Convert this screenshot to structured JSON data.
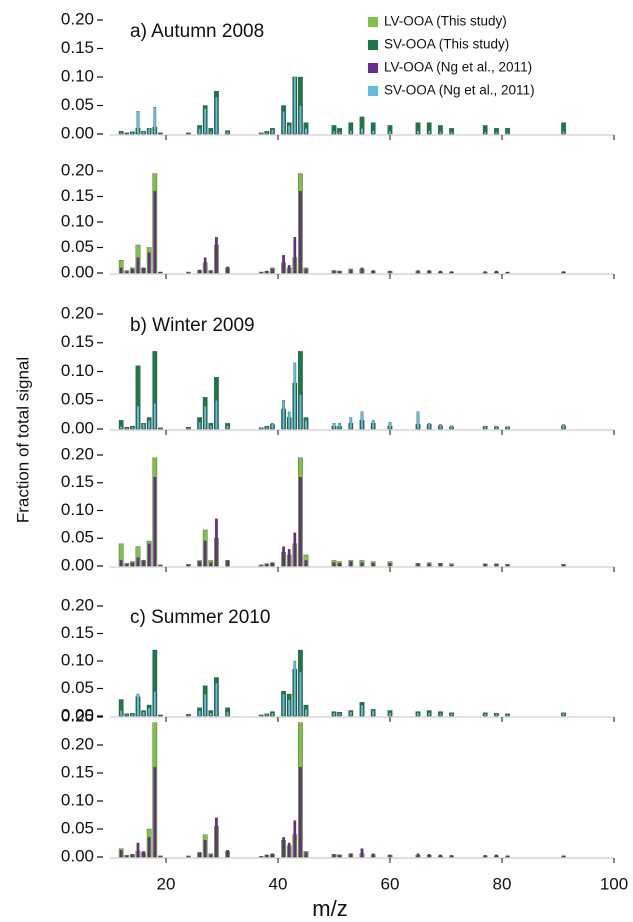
{
  "ylabel": "Fraction of total signal",
  "chart_data": [
    {
      "type": "bar",
      "title": "a) Autumn 2008",
      "x": [
        12,
        13,
        14,
        15,
        16,
        17,
        18,
        19,
        24,
        26,
        27,
        28,
        29,
        31,
        37,
        38,
        39,
        41,
        42,
        43,
        44,
        45,
        50,
        51,
        53,
        55,
        57,
        60,
        65,
        67,
        69,
        71,
        77,
        79,
        81,
        91
      ],
      "series": [
        {
          "name": "SV-OOA (This study)",
          "color": "#1a7a45",
          "values": [
            0.005,
            0.002,
            0.004,
            0.01,
            0.005,
            0.01,
            0.012,
            0.002,
            0.002,
            0.015,
            0.05,
            0.01,
            0.075,
            0.006,
            0.002,
            0.005,
            0.01,
            0.05,
            0.02,
            0.1,
            0.1,
            0.02,
            0.015,
            0.01,
            0.02,
            0.03,
            0.02,
            0.015,
            0.02,
            0.02,
            0.015,
            0.01,
            0.015,
            0.01,
            0.01,
            0.02
          ]
        },
        {
          "name": "SV-OOA (Ng et al., 2011)",
          "color": "#5bc0e0",
          "values": [
            0.003,
            0.001,
            0.003,
            0.04,
            0.005,
            0.01,
            0.047,
            0.001,
            0.001,
            0.01,
            0.045,
            0.005,
            0.065,
            0.004,
            0.002,
            0.003,
            0.008,
            0.04,
            0.015,
            0.1,
            0.05,
            0.01,
            0.005,
            0.004,
            0.006,
            0.01,
            0.006,
            0.005,
            0.006,
            0.006,
            0.005,
            0.004,
            0.004,
            0.004,
            0.003,
            0.005
          ]
        }
      ],
      "xlim": [
        10,
        100
      ],
      "xticks": [
        20,
        40,
        60,
        80,
        100
      ],
      "ylim": [
        0,
        0.2
      ],
      "yticks": [
        {
          "value": 0,
          "label": "0.00"
        },
        {
          "value": 0.05,
          "label": "0.05"
        },
        {
          "value": 0.1,
          "label": "0.10"
        },
        {
          "value": 0.15,
          "label": "0.15"
        },
        {
          "value": 0.2,
          "label": "0.20"
        }
      ]
    },
    {
      "type": "bar",
      "x": [
        12,
        13,
        14,
        15,
        16,
        17,
        18,
        19,
        24,
        26,
        27,
        28,
        29,
        31,
        37,
        38,
        39,
        41,
        42,
        43,
        44,
        45,
        50,
        51,
        53,
        55,
        57,
        60,
        65,
        67,
        69,
        71,
        77,
        79,
        81,
        91
      ],
      "series": [
        {
          "name": "LV-OOA (This study)",
          "color": "#7dc242",
          "values": [
            0.025,
            0.005,
            0.01,
            0.055,
            0.01,
            0.05,
            0.195,
            0.002,
            0.002,
            0.005,
            0.02,
            0.005,
            0.055,
            0.01,
            0.002,
            0.003,
            0.01,
            0.02,
            0.01,
            0.03,
            0.195,
            0.01,
            0.005,
            0.004,
            0.008,
            0.008,
            0.004,
            0.003,
            0.003,
            0.004,
            0.002,
            0.002,
            0.002,
            0.002,
            0.001,
            0.002
          ]
        },
        {
          "name": "LV-OOA (Ng et al., 2011)",
          "color": "#6a2c91",
          "values": [
            0.01,
            0.003,
            0.008,
            0.03,
            0.01,
            0.04,
            0.16,
            0.001,
            0.001,
            0.006,
            0.03,
            0.004,
            0.07,
            0.012,
            0.001,
            0.004,
            0.008,
            0.035,
            0.015,
            0.07,
            0.16,
            0.008,
            0.004,
            0.003,
            0.006,
            0.01,
            0.005,
            0.004,
            0.005,
            0.005,
            0.004,
            0.003,
            0.003,
            0.004,
            0.002,
            0.003
          ]
        }
      ],
      "xlim": [
        10,
        100
      ],
      "xticks": [
        20,
        40,
        60,
        80,
        100
      ],
      "ylim": [
        0,
        0.2
      ],
      "yticks": [
        {
          "value": 0,
          "label": "0.00"
        },
        {
          "value": 0.05,
          "label": "0.05"
        },
        {
          "value": 0.1,
          "label": "0.10"
        },
        {
          "value": 0.15,
          "label": "0.15"
        },
        {
          "value": 0.2,
          "label": "0.20"
        }
      ]
    },
    {
      "type": "bar",
      "title": "b) Winter 2009",
      "x": [
        12,
        13,
        14,
        15,
        16,
        17,
        18,
        19,
        24,
        26,
        27,
        28,
        29,
        31,
        37,
        38,
        39,
        41,
        42,
        43,
        44,
        45,
        50,
        51,
        53,
        55,
        57,
        60,
        65,
        67,
        69,
        71,
        77,
        79,
        81,
        91
      ],
      "series": [
        {
          "color": "#1a7a45",
          "values": [
            0.015,
            0.003,
            0.005,
            0.11,
            0.01,
            0.02,
            0.135,
            0.002,
            0.003,
            0.02,
            0.055,
            0.01,
            0.09,
            0.01,
            0.002,
            0.005,
            0.008,
            0.035,
            0.02,
            0.08,
            0.135,
            0.02,
            0.005,
            0.005,
            0.01,
            0.015,
            0.01,
            0.005,
            0.008,
            0.008,
            0.006,
            0.004,
            0.005,
            0.004,
            0.004,
            0.006
          ]
        },
        {
          "color": "#5bc0e0",
          "values": [
            0.005,
            0.002,
            0.004,
            0.04,
            0.01,
            0.015,
            0.045,
            0.001,
            0.002,
            0.012,
            0.04,
            0.006,
            0.05,
            0.006,
            0.002,
            0.004,
            0.01,
            0.05,
            0.03,
            0.115,
            0.06,
            0.015,
            0.01,
            0.01,
            0.02,
            0.03,
            0.015,
            0.012,
            0.03,
            0.01,
            0.008,
            0.006,
            0.005,
            0.005,
            0.004,
            0.008
          ]
        }
      ],
      "xlim": [
        10,
        100
      ],
      "xticks": [
        20,
        40,
        60,
        80,
        100
      ],
      "ylim": [
        0,
        0.2
      ],
      "yticks": [
        {
          "value": 0,
          "label": "0.00"
        },
        {
          "value": 0.05,
          "label": "0.05"
        },
        {
          "value": 0.1,
          "label": "0.10"
        },
        {
          "value": 0.15,
          "label": "0.15"
        },
        {
          "value": 0.2,
          "label": "0.20"
        }
      ]
    },
    {
      "type": "bar",
      "x": [
        12,
        13,
        14,
        15,
        16,
        17,
        18,
        19,
        24,
        26,
        27,
        28,
        29,
        31,
        37,
        38,
        39,
        41,
        42,
        43,
        44,
        45,
        50,
        51,
        53,
        55,
        57,
        60,
        65,
        67,
        69,
        71,
        77,
        79,
        81,
        91
      ],
      "series": [
        {
          "color": "#7dc242",
          "values": [
            0.04,
            0.005,
            0.008,
            0.035,
            0.01,
            0.045,
            0.195,
            0.002,
            0.003,
            0.01,
            0.065,
            0.01,
            0.05,
            0.01,
            0.002,
            0.004,
            0.006,
            0.025,
            0.02,
            0.04,
            0.195,
            0.02,
            0.01,
            0.008,
            0.01,
            0.01,
            0.008,
            0.008,
            0.005,
            0.006,
            0.005,
            0.004,
            0.004,
            0.004,
            0.003,
            0.003
          ]
        },
        {
          "color": "#6a2c91",
          "values": [
            0.01,
            0.003,
            0.006,
            0.015,
            0.01,
            0.04,
            0.16,
            0.001,
            0.002,
            0.008,
            0.045,
            0.006,
            0.085,
            0.01,
            0.001,
            0.004,
            0.006,
            0.035,
            0.03,
            0.06,
            0.16,
            0.01,
            0.006,
            0.005,
            0.008,
            0.006,
            0.005,
            0.005,
            0.004,
            0.004,
            0.004,
            0.002,
            0.003,
            0.003,
            0.002,
            0.002
          ]
        }
      ],
      "xlim": [
        10,
        100
      ],
      "xticks": [
        20,
        40,
        60,
        80,
        100
      ],
      "ylim": [
        0,
        0.2
      ],
      "yticks": [
        {
          "value": 0,
          "label": "0.00"
        },
        {
          "value": 0.05,
          "label": "0.05"
        },
        {
          "value": 0.1,
          "label": "0.10"
        },
        {
          "value": 0.15,
          "label": "0.15"
        },
        {
          "value": 0.2,
          "label": "0.20"
        }
      ]
    },
    {
      "type": "bar",
      "title": "c) Summer 2010",
      "x": [
        12,
        13,
        14,
        15,
        16,
        17,
        18,
        19,
        24,
        26,
        27,
        28,
        29,
        31,
        37,
        38,
        39,
        41,
        42,
        43,
        44,
        45,
        50,
        51,
        53,
        55,
        57,
        60,
        65,
        67,
        69,
        71,
        77,
        79,
        81,
        91
      ],
      "series": [
        {
          "color": "#1a7a45",
          "values": [
            0.03,
            0.004,
            0.005,
            0.035,
            0.01,
            0.02,
            0.12,
            0.002,
            0.003,
            0.015,
            0.055,
            0.01,
            0.07,
            0.015,
            0.002,
            0.004,
            0.008,
            0.045,
            0.04,
            0.085,
            0.12,
            0.02,
            0.008,
            0.007,
            0.01,
            0.025,
            0.012,
            0.01,
            0.008,
            0.01,
            0.008,
            0.006,
            0.006,
            0.005,
            0.004,
            0.006
          ]
        },
        {
          "color": "#5bc0e0",
          "values": [
            0.01,
            0.002,
            0.004,
            0.04,
            0.008,
            0.015,
            0.045,
            0.001,
            0.002,
            0.01,
            0.04,
            0.006,
            0.06,
            0.008,
            0.002,
            0.003,
            0.006,
            0.04,
            0.03,
            0.1,
            0.08,
            0.012,
            0.006,
            0.005,
            0.008,
            0.02,
            0.01,
            0.006,
            0.006,
            0.006,
            0.005,
            0.004,
            0.004,
            0.004,
            0.003,
            0.005
          ]
        }
      ],
      "xlim": [
        10,
        100
      ],
      "xticks": [
        20,
        40,
        60,
        80,
        100
      ],
      "ylim": [
        0,
        0.2
      ],
      "yticks": [
        {
          "value": 0,
          "label": "0.00"
        },
        {
          "value": 0.05,
          "label": "0.05"
        },
        {
          "value": 0.1,
          "label": "0.10"
        },
        {
          "value": 0.15,
          "label": "0.15"
        },
        {
          "value": 0.2,
          "label": "0.20"
        }
      ]
    },
    {
      "type": "bar",
      "xlabel": "m/z",
      "x": [
        12,
        13,
        14,
        15,
        16,
        17,
        18,
        19,
        24,
        26,
        27,
        28,
        29,
        31,
        37,
        38,
        39,
        41,
        42,
        43,
        44,
        45,
        50,
        51,
        53,
        55,
        57,
        60,
        65,
        67,
        69,
        71,
        77,
        79,
        81,
        91
      ],
      "series": [
        {
          "color": "#7dc242",
          "values": [
            0.015,
            0.003,
            0.005,
            0.01,
            0.008,
            0.05,
            0.24,
            0.002,
            0.002,
            0.008,
            0.04,
            0.006,
            0.055,
            0.01,
            0.001,
            0.003,
            0.005,
            0.03,
            0.02,
            0.04,
            0.24,
            0.01,
            0.005,
            0.004,
            0.006,
            0.006,
            0.004,
            0.003,
            0.003,
            0.003,
            0.002,
            0.002,
            0.002,
            0.002,
            0.002,
            0.002
          ]
        },
        {
          "color": "#6a2c91",
          "values": [
            0.012,
            0.002,
            0.004,
            0.025,
            0.01,
            0.035,
            0.16,
            0.001,
            0.001,
            0.008,
            0.03,
            0.004,
            0.07,
            0.012,
            0.001,
            0.004,
            0.006,
            0.035,
            0.025,
            0.065,
            0.16,
            0.008,
            0.004,
            0.003,
            0.006,
            0.015,
            0.006,
            0.004,
            0.006,
            0.005,
            0.004,
            0.003,
            0.003,
            0.004,
            0.002,
            0.002
          ]
        }
      ],
      "xlim": [
        10,
        100
      ],
      "xticks": [
        20,
        40,
        60,
        80,
        100
      ],
      "ylim": [
        0,
        0.25
      ],
      "yticks": [
        {
          "value": 0,
          "label": "0.00"
        },
        {
          "value": 0.05,
          "label": "0.05"
        },
        {
          "value": 0.1,
          "label": "0.10"
        },
        {
          "value": 0.15,
          "label": "0.15"
        },
        {
          "value": 0.2,
          "label": "0.20"
        },
        {
          "value": 0.25,
          "label": "0.25"
        }
      ]
    }
  ]
}
